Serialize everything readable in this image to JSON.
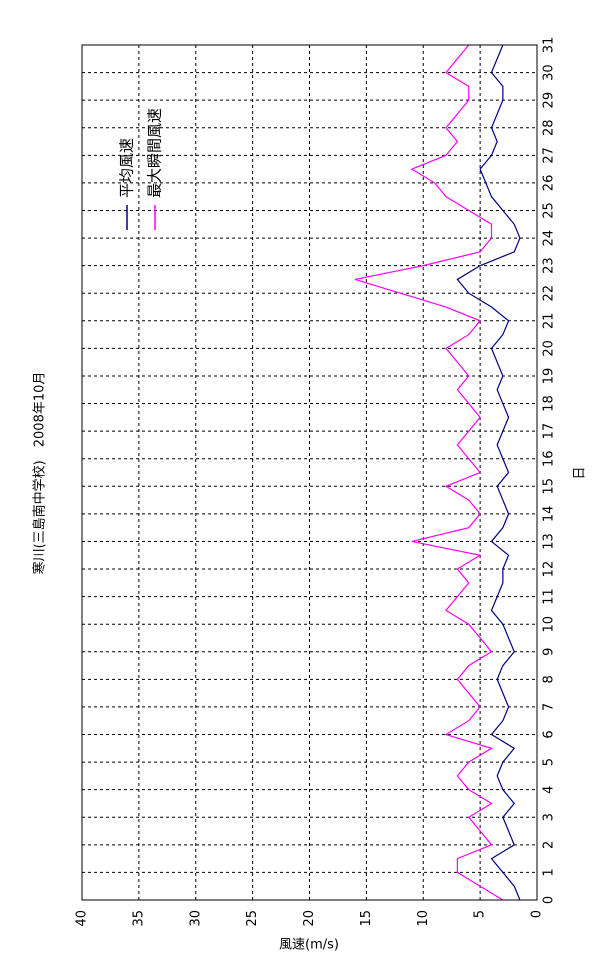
{
  "chart_data": {
    "type": "line",
    "title": "寒川(三島南中学校)　2008年10月",
    "xlabel": "日",
    "ylabel": "風速(m/s)",
    "x": [
      0,
      0.5,
      1,
      1.5,
      2,
      2.5,
      3,
      3.5,
      4,
      4.5,
      5,
      5.5,
      6,
      6.5,
      7,
      7.5,
      8,
      8.5,
      9,
      9.5,
      10,
      10.5,
      11,
      11.5,
      12,
      12.5,
      13,
      13.5,
      14,
      14.5,
      15,
      15.5,
      16,
      16.5,
      17,
      17.5,
      18,
      18.5,
      19,
      19.5,
      20,
      20.5,
      21,
      21.5,
      22,
      22.5,
      23,
      23.5,
      24,
      24.5,
      25,
      25.5,
      26,
      26.5,
      27,
      27.5,
      28,
      28.5,
      29,
      29.5,
      30,
      30.5,
      31
    ],
    "series": [
      {
        "name": "平均風速",
        "color": "#000080",
        "values": [
          1.5,
          2,
          3,
          4,
          2,
          2.5,
          3,
          2,
          3,
          3.5,
          3,
          2,
          4,
          3,
          2.5,
          3,
          3.5,
          3,
          2,
          2.5,
          3,
          4,
          3.5,
          3,
          3,
          2.5,
          4,
          3,
          2.5,
          3,
          3.5,
          2.5,
          3,
          3.5,
          3,
          2.5,
          3,
          3.5,
          3,
          3.5,
          4,
          3,
          2.5,
          4,
          6,
          7,
          5,
          2,
          1.5,
          2,
          3,
          4,
          4.5,
          5,
          4,
          3.5,
          4,
          3.5,
          3,
          3,
          4,
          3.5,
          3
        ]
      },
      {
        "name": "最大瞬間風速",
        "color": "#ff00ff",
        "values": [
          3,
          5,
          7,
          7,
          4,
          5,
          6,
          4,
          6,
          7,
          6,
          4,
          8,
          6,
          5,
          6,
          7,
          6,
          4,
          5,
          6,
          8,
          7,
          6,
          7,
          5,
          11,
          6,
          5,
          6,
          8,
          5,
          6,
          7,
          6,
          5,
          6,
          7,
          6,
          7,
          8,
          6,
          5,
          8,
          12,
          16,
          10,
          5,
          4,
          4,
          6,
          8,
          9,
          11,
          8,
          7,
          8,
          7,
          6,
          6,
          8,
          7,
          6
        ]
      }
    ],
    "xlim": [
      0,
      31
    ],
    "xticks": [
      0,
      1,
      2,
      3,
      4,
      5,
      6,
      7,
      8,
      9,
      10,
      11,
      12,
      13,
      14,
      15,
      16,
      17,
      18,
      19,
      20,
      21,
      22,
      23,
      24,
      25,
      26,
      27,
      28,
      29,
      30,
      31
    ],
    "ylim": [
      0,
      40
    ],
    "yticks": [
      0,
      5,
      10,
      15,
      20,
      25,
      30,
      35,
      40
    ],
    "grid": true,
    "legend": "upper right"
  }
}
